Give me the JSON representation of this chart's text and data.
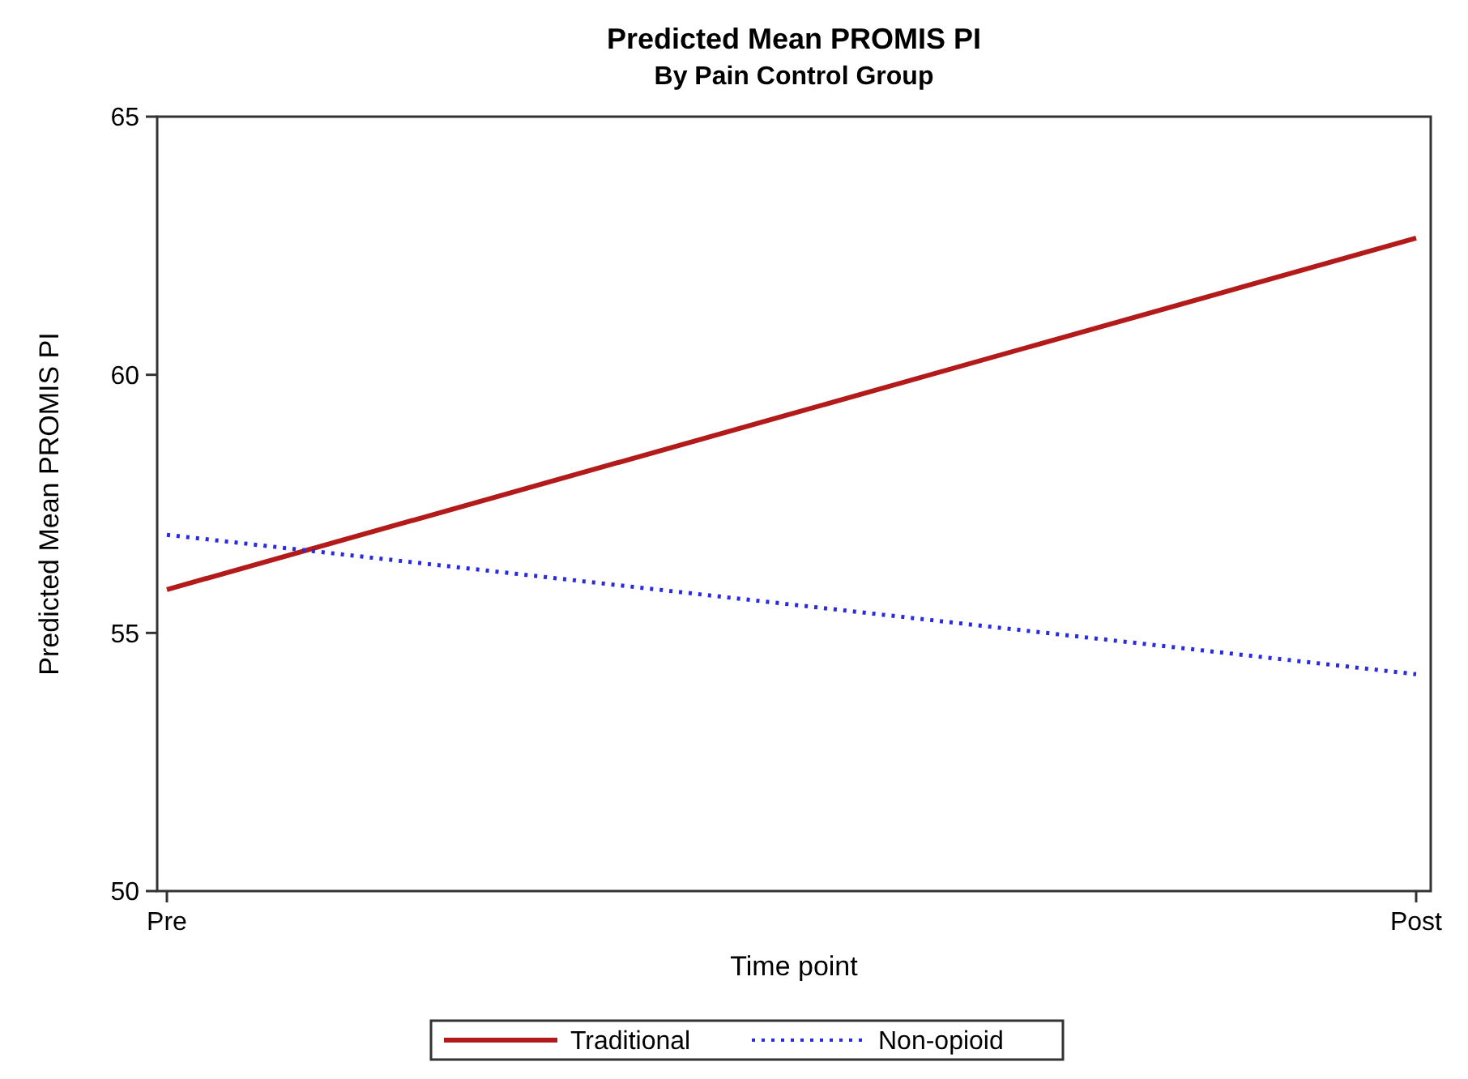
{
  "chart_data": {
    "type": "line",
    "title": "Predicted Mean PROMIS PI",
    "subtitle": "By Pain Control Group",
    "xlabel": "Time point",
    "ylabel": "Predicted Mean PROMIS PI",
    "categories": [
      "Pre",
      "Post"
    ],
    "ylim": [
      50,
      65
    ],
    "yticks": [
      50,
      55,
      60,
      65
    ],
    "legend": "bottom",
    "series": [
      {
        "name": "Traditional",
        "color": "#b31b1b",
        "values": [
          55.84,
          62.65
        ],
        "line_style": "solid"
      },
      {
        "name": "Non-opioid",
        "color": "#2a2ae0",
        "values": [
          56.9,
          54.2
        ],
        "line_style": "dotted"
      }
    ]
  }
}
